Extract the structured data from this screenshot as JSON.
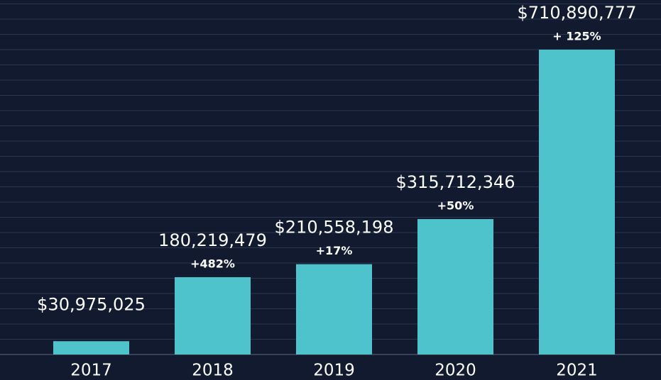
{
  "chart_data": {
    "type": "bar",
    "categories": [
      "2017",
      "2018",
      "2019",
      "2020",
      "2021"
    ],
    "values": [
      30975025,
      180219479,
      210558198,
      315712346,
      710890777
    ],
    "value_labels": [
      "$30,975,025",
      "180,219,479",
      "$210,558,198",
      "$315,712,346",
      "$710,890,777"
    ],
    "change_labels": [
      null,
      "+482%",
      "+17%",
      "+50%",
      "+ 125%"
    ],
    "color": "#4fc3cc",
    "ylim": [
      0,
      800000000
    ],
    "grid": true
  }
}
